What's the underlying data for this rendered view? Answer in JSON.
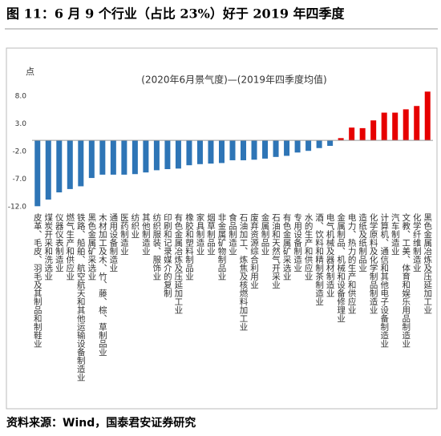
{
  "header": {
    "title": "图 11：6 月 9 个行业（占比 23%）好于 2019 年四季度"
  },
  "chart_data": {
    "type": "bar",
    "subtitle": "(2020年6月景气度)—(2019年四季度均值)",
    "y_label": "点",
    "categories": [
      "皮革、毛皮、羽毛及其制品和制鞋业",
      "煤炭开采和洗选业",
      "仪器仪表制造业",
      "燃气生产和供应业",
      "铁路、船舶、航空航天和其他运输设备制造业",
      "黑色金属矿采选业",
      "木材加工及木、竹、藤、棕、草制品业",
      "通用设备制造业",
      "医药制造业",
      "纺织业",
      "其他制造业",
      "纺织服装、服饰业",
      "印刷和记录媒介的复制",
      "有色金属冶炼及压延加工业",
      "橡胶和塑料制品业",
      "家具制造业",
      "烟草制品业",
      "非金属矿物制品业",
      "食品制造业",
      "石油加工、炼焦及核燃料加工业",
      "废弃资源综合利用业",
      "金属制品业",
      "石油和天然气开采业",
      "有色金属矿采选业",
      "专用设备制造业",
      "水的生产和供应业",
      "酒、饮料和精制茶制造业",
      "电气机械及器材制造业",
      "金属制品、机械和设备修理业",
      "电力、热力的生产和供应业",
      "造纸及纸制品业",
      "化学原料及化学制品制造业",
      "计算机、通信和其他电子设备制造业",
      "汽车制造业",
      "文教、工美、体育和娱乐用品制造业",
      "化学纤维制造业",
      "黑色金属冶炼及压延加工业"
    ],
    "values": [
      -11.9,
      -10.7,
      -9.4,
      -8.8,
      -8.3,
      -6.8,
      -6.2,
      -6.2,
      -6.2,
      -6.1,
      -5.8,
      -5.4,
      -5.2,
      -5.1,
      -4.5,
      -4.3,
      -4.2,
      -4.1,
      -3.6,
      -3.6,
      -3.5,
      -3.3,
      -3.0,
      -2.8,
      -2.2,
      -1.9,
      -1.4,
      -1.0,
      0.4,
      2.3,
      2.2,
      3.6,
      5.0,
      5.0,
      5.6,
      6.2,
      8.8
    ],
    "positive_color": "#e60000",
    "negative_color": "#2e75b6",
    "ylim": [
      -12,
      10
    ],
    "yticks": [
      {
        "value": 8,
        "label": "8.0"
      },
      {
        "value": 3,
        "label": "3.0"
      },
      {
        "value": -2,
        "label": "-2.0"
      },
      {
        "value": -7,
        "label": "-7.0"
      },
      {
        "value": -12,
        "label": "-12.0"
      }
    ],
    "grid": false
  },
  "footer": {
    "source": "资料来源：Wind，国泰君安证券研究"
  }
}
